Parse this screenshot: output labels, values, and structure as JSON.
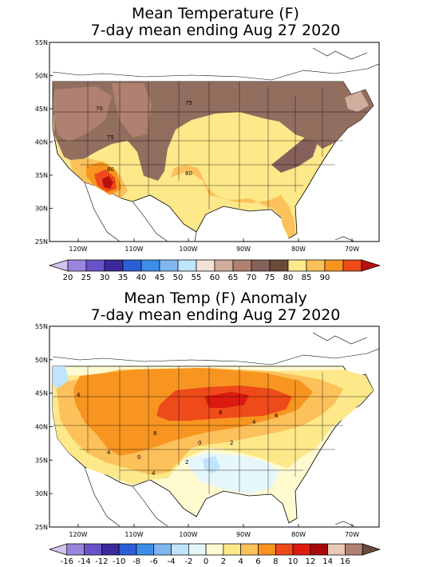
{
  "panel1": {
    "title_line1": "Mean Temperature (F)",
    "title_line2": "7-day mean ending Aug 27 2020",
    "lat_labels": [
      "55N",
      "50N",
      "45N",
      "40N",
      "35N",
      "30N",
      "25N"
    ],
    "lon_labels": [
      "120W",
      "110W",
      "100W",
      "90W",
      "80W",
      "70W"
    ],
    "contour_labels": [
      "70",
      "75",
      "75",
      "80",
      "80"
    ],
    "colorbar": {
      "labels": [
        "20",
        "25",
        "30",
        "35",
        "40",
        "45",
        "50",
        "55",
        "60",
        "65",
        "70",
        "75",
        "80",
        "85",
        "90"
      ],
      "colors": [
        "#d3c4ef",
        "#9a86de",
        "#6a52c8",
        "#3a2a9a",
        "#2a5fd6",
        "#3c8ee9",
        "#7fb6f0",
        "#bfe4fb",
        "#f3e2d6",
        "#cfae9e",
        "#b08070",
        "#86605a",
        "#6a4a3a",
        "#fde88a",
        "#fcc15a",
        "#f79520",
        "#ee4a1a",
        "#bb1010"
      ]
    }
  },
  "panel2": {
    "title_line1": "Mean Temp (F) Anomaly",
    "title_line2": "7-day mean ending Aug 27 2020",
    "lat_labels": [
      "55N",
      "50N",
      "45N",
      "40N",
      "35N",
      "30N",
      "25N"
    ],
    "lon_labels": [
      "120W",
      "110W",
      "100W",
      "90W",
      "80W",
      "70W"
    ],
    "contour_labels": [
      "4",
      "8",
      "8",
      "4",
      "6",
      "4",
      "2",
      "0",
      "2",
      "0",
      "4"
    ],
    "colorbar": {
      "labels": [
        "-16",
        "-14",
        "-12",
        "-10",
        "-8",
        "-6",
        "-4",
        "-2",
        "0",
        "2",
        "4",
        "6",
        "8",
        "10",
        "12",
        "14",
        "16"
      ],
      "colors": [
        "#d3c4ef",
        "#9a86de",
        "#6a52c8",
        "#3a2a9a",
        "#2a5fd6",
        "#3c8ee9",
        "#7fb6f0",
        "#bfe4fb",
        "#e6f7fc",
        "#fffad0",
        "#fde88a",
        "#fcc15a",
        "#f79520",
        "#ee4a1a",
        "#dd1a10",
        "#a80808",
        "#e8c8b8",
        "#b08070",
        "#6a4a3a"
      ]
    }
  }
}
